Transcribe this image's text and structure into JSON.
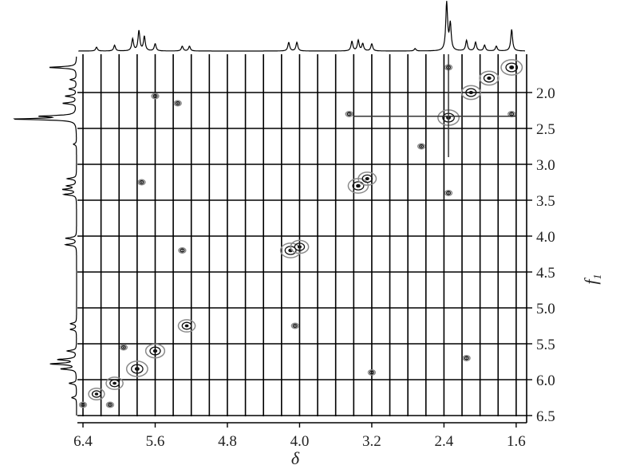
{
  "chart_data": {
    "type": "heatmap",
    "subtype": "2D NMR contour (COSY) with 1D projections",
    "xlabel": "δ",
    "ylabel": "f",
    "ylabel_subscript": "1",
    "x_axis": {
      "reversed": true,
      "range": [
        6.45,
        1.5
      ],
      "ticks": [
        "6.4",
        "5.6",
        "4.8",
        "4.0",
        "3.2",
        "2.4",
        "1.6"
      ],
      "tick_values": [
        6.4,
        5.6,
        4.8,
        4.0,
        3.2,
        2.4,
        1.6
      ]
    },
    "y_axis": {
      "position": "right",
      "range": [
        1.5,
        6.5
      ],
      "ticks": [
        "2.0",
        "2.5",
        "3.0",
        "3.5",
        "4.0",
        "4.5",
        "5.0",
        "5.5",
        "6.0",
        "6.5"
      ],
      "tick_values": [
        2.0,
        2.5,
        3.0,
        3.5,
        4.0,
        4.5,
        5.0,
        5.5,
        6.0,
        6.5
      ]
    },
    "grid": {
      "vertical_step": 0.2,
      "horizontal_step": 0.5
    },
    "colors": {
      "contour_dark": "#111111",
      "contour_light": "#8a8a8a",
      "line": "#000000"
    },
    "diagonal_peaks": [
      {
        "x": 1.65,
        "y": 1.65,
        "intensity": 1.0
      },
      {
        "x": 1.9,
        "y": 1.8,
        "intensity": 0.8
      },
      {
        "x": 2.1,
        "y": 2.0,
        "intensity": 0.8
      },
      {
        "x": 2.35,
        "y": 2.35,
        "intensity": 1.0
      },
      {
        "x": 3.35,
        "y": 3.3,
        "intensity": 0.9
      },
      {
        "x": 3.25,
        "y": 3.2,
        "intensity": 0.7
      },
      {
        "x": 4.1,
        "y": 4.2,
        "intensity": 0.9
      },
      {
        "x": 4.0,
        "y": 4.15,
        "intensity": 0.7
      },
      {
        "x": 5.25,
        "y": 5.25,
        "intensity": 0.6
      },
      {
        "x": 5.6,
        "y": 5.6,
        "intensity": 0.8
      },
      {
        "x": 5.8,
        "y": 5.85,
        "intensity": 1.0
      },
      {
        "x": 6.05,
        "y": 6.05,
        "intensity": 0.6
      },
      {
        "x": 6.25,
        "y": 6.2,
        "intensity": 0.5
      }
    ],
    "cross_peaks": [
      {
        "x": 5.6,
        "y": 2.05
      },
      {
        "x": 5.35,
        "y": 2.15
      },
      {
        "x": 5.75,
        "y": 3.25
      },
      {
        "x": 3.45,
        "y": 2.3
      },
      {
        "x": 2.65,
        "y": 2.75
      },
      {
        "x": 2.35,
        "y": 3.4
      },
      {
        "x": 5.3,
        "y": 4.2
      },
      {
        "x": 4.05,
        "y": 5.25
      },
      {
        "x": 2.15,
        "y": 5.7
      },
      {
        "x": 3.2,
        "y": 5.9
      },
      {
        "x": 1.65,
        "y": 2.3
      },
      {
        "x": 2.35,
        "y": 1.65
      },
      {
        "x": 6.4,
        "y": 6.35
      },
      {
        "x": 6.1,
        "y": 6.35
      },
      {
        "x": 5.95,
        "y": 5.55
      }
    ],
    "projection_peaks": [
      {
        "ppm": 6.25,
        "height": 0.08
      },
      {
        "ppm": 6.05,
        "height": 0.12
      },
      {
        "ppm": 5.85,
        "height": 0.25
      },
      {
        "ppm": 5.78,
        "height": 0.42
      },
      {
        "ppm": 5.72,
        "height": 0.3
      },
      {
        "ppm": 5.6,
        "height": 0.15
      },
      {
        "ppm": 5.3,
        "height": 0.1
      },
      {
        "ppm": 5.22,
        "height": 0.1
      },
      {
        "ppm": 4.12,
        "height": 0.18
      },
      {
        "ppm": 4.03,
        "height": 0.18
      },
      {
        "ppm": 3.42,
        "height": 0.2
      },
      {
        "ppm": 3.35,
        "height": 0.22
      },
      {
        "ppm": 3.3,
        "height": 0.15
      },
      {
        "ppm": 3.2,
        "height": 0.15
      },
      {
        "ppm": 2.72,
        "height": 0.05
      },
      {
        "ppm": 2.37,
        "height": 1.0
      },
      {
        "ppm": 2.33,
        "height": 0.55
      },
      {
        "ppm": 2.15,
        "height": 0.22
      },
      {
        "ppm": 2.05,
        "height": 0.18
      },
      {
        "ppm": 1.95,
        "height": 0.12
      },
      {
        "ppm": 1.82,
        "height": 0.1
      },
      {
        "ppm": 1.65,
        "height": 0.45
      }
    ]
  }
}
